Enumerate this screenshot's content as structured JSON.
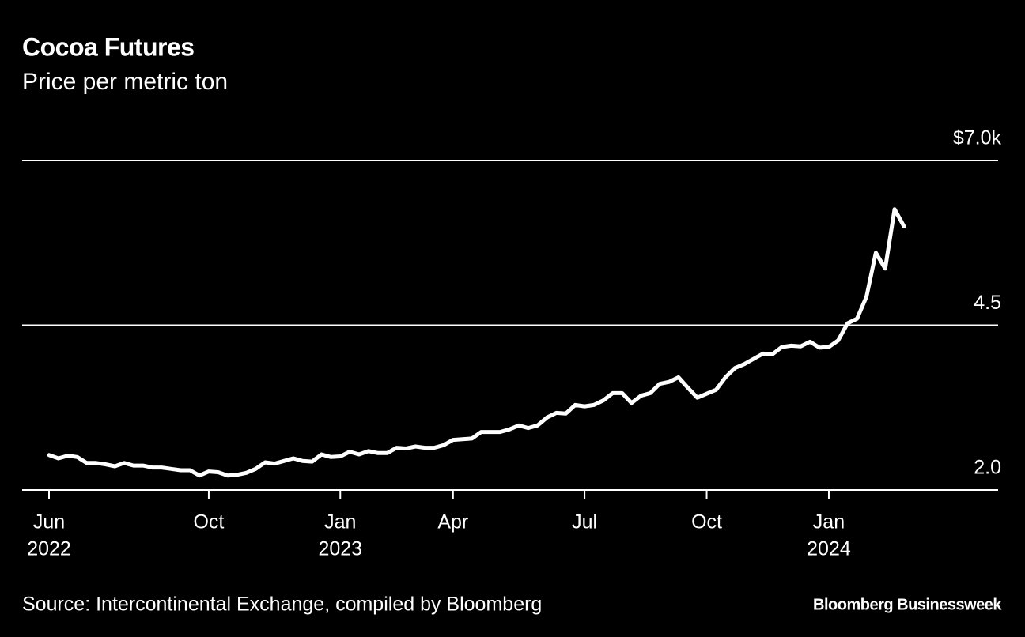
{
  "chart_data": {
    "type": "line",
    "title": "Cocoa Futures",
    "subtitle": "Price per metric ton",
    "source": "Source: Intercontinental Exchange, compiled by Bloomberg",
    "brand": "Bloomberg Businessweek",
    "categories": [
      "Jun",
      null,
      null,
      null,
      null,
      null,
      null,
      null,
      null,
      null,
      null,
      null,
      null,
      null,
      null,
      null,
      null,
      "Oct",
      null,
      null,
      null,
      null,
      null,
      null,
      null,
      null,
      null,
      null,
      null,
      null,
      null,
      "Jan",
      null,
      null,
      null,
      null,
      null,
      null,
      null,
      null,
      null,
      null,
      null,
      "Apr",
      null,
      null,
      null,
      null,
      null,
      null,
      null,
      null,
      null,
      null,
      null,
      null,
      null,
      "Jul",
      null,
      null,
      null,
      null,
      null,
      null,
      null,
      null,
      null,
      null,
      null,
      null,
      "Oct",
      null,
      null,
      null,
      null,
      null,
      null,
      null,
      null,
      null,
      null,
      null,
      null,
      "Jan",
      null,
      null,
      null,
      null,
      null,
      null,
      null,
      null
    ],
    "category_years": [
      "2022",
      null,
      null,
      null,
      null,
      null,
      null,
      null,
      null,
      null,
      null,
      null,
      null,
      null,
      null,
      null,
      null,
      null,
      null,
      null,
      null,
      null,
      null,
      null,
      null,
      null,
      null,
      null,
      null,
      null,
      null,
      "2023",
      null,
      null,
      null,
      null,
      null,
      null,
      null,
      null,
      null,
      null,
      null,
      null,
      null,
      null,
      null,
      null,
      null,
      null,
      null,
      null,
      null,
      null,
      null,
      null,
      null,
      null,
      null,
      null,
      null,
      null,
      null,
      null,
      null,
      null,
      null,
      null,
      null,
      null,
      null,
      null,
      null,
      null,
      null,
      null,
      null,
      null,
      null,
      null,
      null,
      null,
      null,
      "2024",
      null,
      null,
      null,
      null,
      null,
      null,
      null,
      null
    ],
    "series": [
      {
        "name": "Cocoa futures",
        "color": "#ffffff",
        "values": [
          2.53,
          2.48,
          2.52,
          2.5,
          2.41,
          2.41,
          2.39,
          2.36,
          2.41,
          2.37,
          2.37,
          2.34,
          2.34,
          2.32,
          2.3,
          2.3,
          2.22,
          2.28,
          2.27,
          2.22,
          2.23,
          2.26,
          2.32,
          2.42,
          2.4,
          2.44,
          2.48,
          2.44,
          2.43,
          2.54,
          2.5,
          2.51,
          2.58,
          2.54,
          2.59,
          2.56,
          2.56,
          2.64,
          2.63,
          2.66,
          2.64,
          2.64,
          2.68,
          2.76,
          2.77,
          2.78,
          2.88,
          2.88,
          2.88,
          2.92,
          2.98,
          2.94,
          2.98,
          3.1,
          3.17,
          3.16,
          3.29,
          3.27,
          3.29,
          3.36,
          3.47,
          3.47,
          3.32,
          3.43,
          3.47,
          3.61,
          3.64,
          3.71,
          3.55,
          3.4,
          3.46,
          3.52,
          3.71,
          3.85,
          3.91,
          3.99,
          4.07,
          4.06,
          4.17,
          4.19,
          4.18,
          4.25,
          4.16,
          4.17,
          4.27,
          4.53,
          4.6,
          4.93,
          5.6,
          5.36,
          6.26,
          6.0
        ]
      }
    ],
    "ylim": [
      2.0,
      7.0
    ],
    "yticks": [
      {
        "value": 2.0,
        "label": "2.0"
      },
      {
        "value": 4.5,
        "label": "4.5"
      },
      {
        "value": 7.0,
        "label": "$7.0k"
      }
    ],
    "grid": true
  }
}
